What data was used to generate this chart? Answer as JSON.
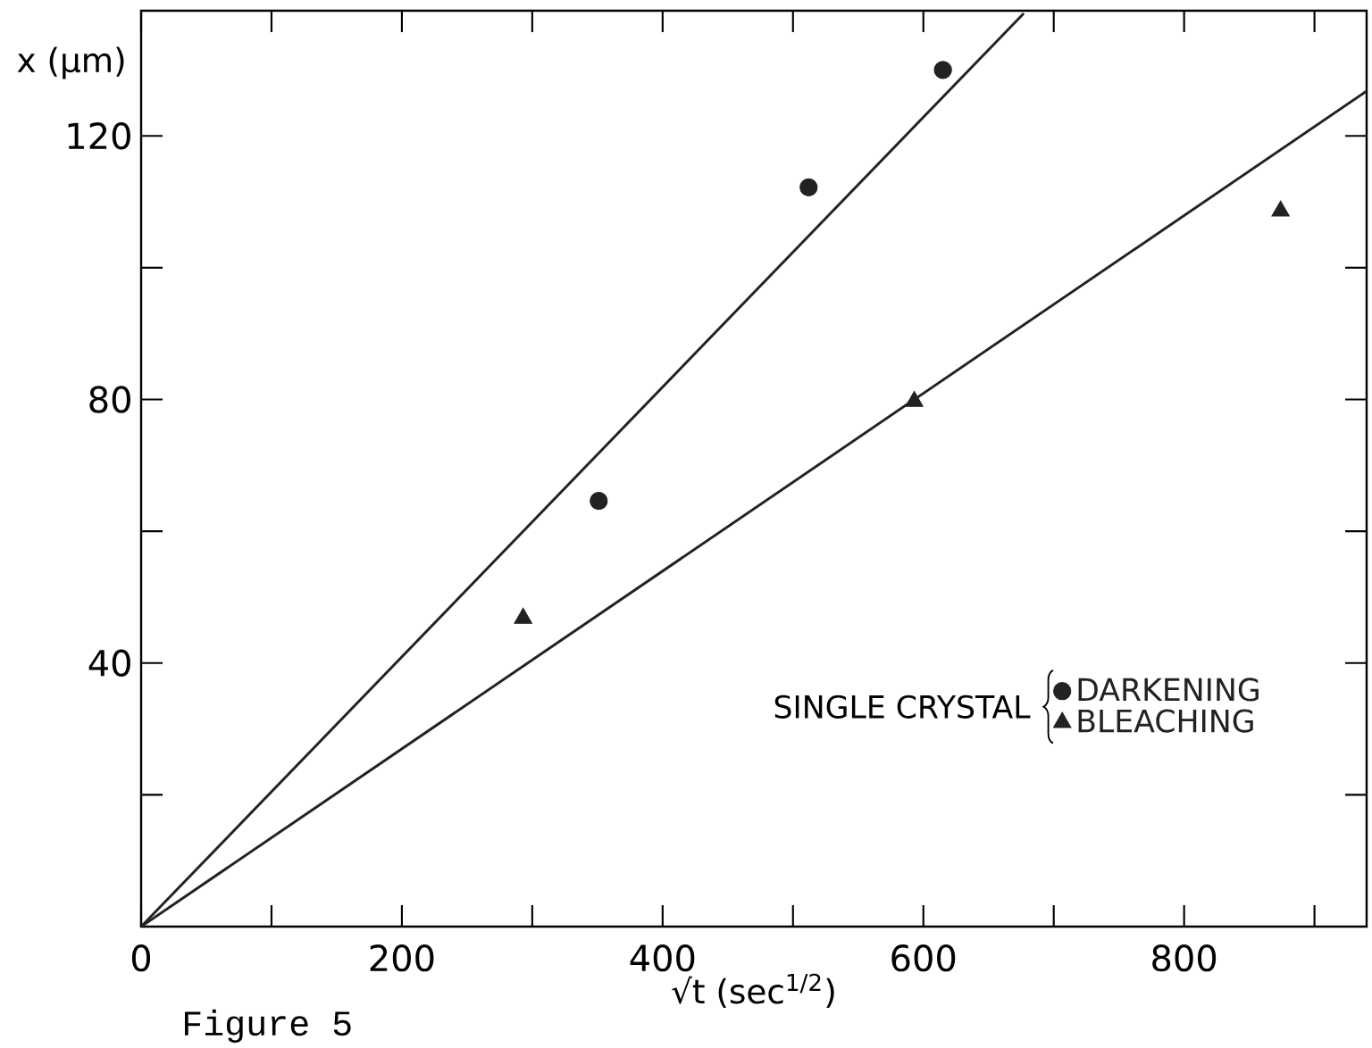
{
  "chart_data": {
    "type": "scatter",
    "xlabel": "√t (sec$^{1/2}$)",
    "ylabel": "x (μm)",
    "legend_title": "SINGLE CRYSTAL",
    "annotations": [
      "Figure 5"
    ],
    "xlim": [
      0,
      940
    ],
    "ylim": [
      0,
      139
    ],
    "xticks": [
      0,
      {
        "value": 100,
        "label": null
      },
      200,
      {
        "value": 300,
        "label": null
      },
      400,
      {
        "value": 500,
        "label": null
      },
      600,
      {
        "value": 700,
        "label": null
      },
      800,
      {
        "value": 900,
        "label": null
      }
    ],
    "yticks": [
      {
        "value": 20,
        "label": null
      },
      40,
      {
        "value": 60,
        "label": null
      },
      80,
      {
        "value": 100,
        "label": null
      },
      120
    ],
    "legend": "bottom right",
    "series": [
      {
        "name": "DARKENING",
        "marker": "circle",
        "color": "#222222",
        "x": [
          351,
          512,
          615
        ],
        "values": [
          64.6,
          112.2,
          130
        ]
      },
      {
        "name": "BLEACHING",
        "marker": "triangle",
        "color": "#222222",
        "x": [
          293,
          593,
          874
        ],
        "values": [
          46.8,
          79.7,
          108.6
        ]
      },
      {
        "type": "line",
        "marker": "none",
        "color": "#222222",
        "x": [
          0,
          677
        ],
        "values": [
          0,
          138.6
        ]
      },
      {
        "type": "line",
        "marker": "none",
        "color": "#222222",
        "x": [
          0,
          940
        ],
        "values": [
          0,
          126.8
        ]
      }
    ]
  }
}
